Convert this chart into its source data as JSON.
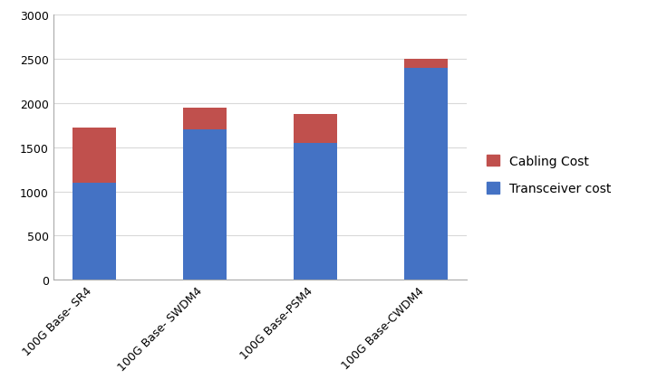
{
  "categories": [
    "100G Base- SR4",
    "100G Base- SWDM4",
    "100G Base-PSM4",
    "100G Base-CWDM4"
  ],
  "transceiver_values": [
    1100,
    1700,
    1550,
    2400
  ],
  "cabling_values": [
    620,
    250,
    330,
    100
  ],
  "transceiver_color": "#4472C4",
  "cabling_color": "#C0504D",
  "ylim": [
    0,
    3000
  ],
  "yticks": [
    0,
    500,
    1000,
    1500,
    2000,
    2500,
    3000
  ],
  "legend_cabling": "Cabling Cost",
  "legend_transceiver": "Transceiver cost",
  "background_color": "#FFFFFF",
  "bar_width": 0.4,
  "tick_fontsize": 9,
  "legend_fontsize": 10,
  "grid_color": "#D9D9D9"
}
